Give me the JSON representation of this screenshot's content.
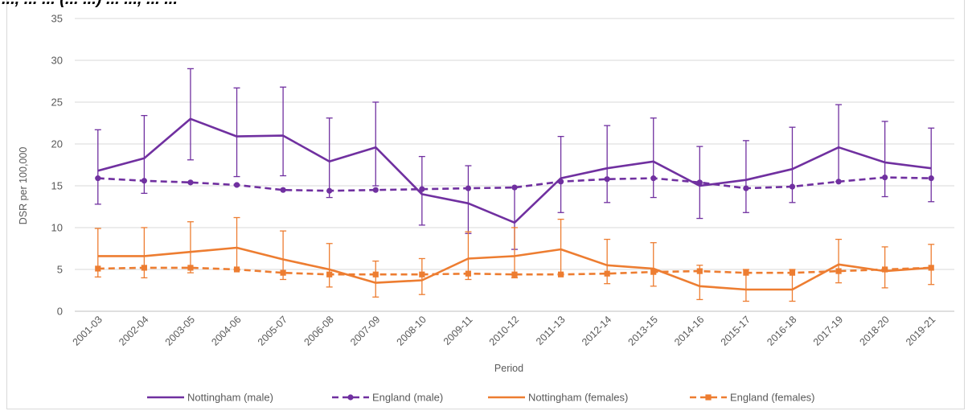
{
  "title_fragment": "..., ... ... (... ...) ... ..., ... ...",
  "chart_data": {
    "type": "line",
    "title": "",
    "xlabel": "Period",
    "ylabel": "DSR per 100,000",
    "ylim": [
      0,
      35
    ],
    "yticks": [
      0,
      5,
      10,
      15,
      20,
      25,
      30,
      35
    ],
    "grid": true,
    "legend_position": "bottom",
    "categories": [
      "2001-03",
      "2002-04",
      "2003-05",
      "2004-06",
      "2005-07",
      "2006-08",
      "2007-09",
      "2008-10",
      "2009-11",
      "2010-12",
      "2011-13",
      "2012-14",
      "2013-15",
      "2014-16",
      "2015-17",
      "2016-18",
      "2017-19",
      "2018-20",
      "2019-21"
    ],
    "series": [
      {
        "name": "Nottingham (male)",
        "color": "#7030a0",
        "style": "solid",
        "marker": "none",
        "values": [
          16.8,
          18.3,
          23.0,
          20.9,
          21.0,
          17.9,
          19.6,
          14.0,
          12.9,
          10.6,
          15.9,
          17.1,
          17.9,
          15.0,
          15.7,
          17.0,
          19.6,
          17.8,
          17.1
        ],
        "lower": [
          12.8,
          14.1,
          18.1,
          16.1,
          16.2,
          13.6,
          15.0,
          10.3,
          9.3,
          7.4,
          11.8,
          13.0,
          13.6,
          11.1,
          11.8,
          13.0,
          15.5,
          13.7,
          13.1
        ],
        "upper": [
          21.7,
          23.4,
          29.0,
          26.7,
          26.8,
          23.1,
          25.0,
          18.5,
          17.4,
          14.8,
          20.9,
          22.2,
          23.1,
          19.7,
          20.4,
          22.0,
          24.7,
          22.7,
          21.9
        ]
      },
      {
        "name": "England (male)",
        "color": "#7030a0",
        "style": "dashed",
        "marker": "circle",
        "values": [
          15.9,
          15.6,
          15.4,
          15.1,
          14.5,
          14.4,
          14.5,
          14.6,
          14.7,
          14.8,
          15.5,
          15.8,
          15.9,
          15.4,
          14.7,
          14.9,
          15.5,
          16.0,
          15.9
        ]
      },
      {
        "name": "Nottingham (females)",
        "color": "#ed7d31",
        "style": "solid",
        "marker": "none",
        "values": [
          6.6,
          6.6,
          7.1,
          7.6,
          6.2,
          5.0,
          3.4,
          3.7,
          6.3,
          6.6,
          7.4,
          5.5,
          5.1,
          3.0,
          2.6,
          2.6,
          5.6,
          4.8,
          5.2
        ],
        "lower": [
          4.1,
          4.0,
          4.6,
          5.0,
          3.8,
          2.9,
          1.7,
          2.0,
          3.8,
          4.0,
          4.4,
          3.3,
          3.0,
          1.4,
          1.2,
          1.2,
          3.4,
          2.8,
          3.2
        ],
        "upper": [
          9.9,
          10.0,
          10.7,
          11.2,
          9.6,
          8.1,
          6.0,
          6.3,
          9.5,
          10.0,
          11.0,
          8.6,
          8.2,
          5.5,
          5.0,
          5.0,
          8.6,
          7.7,
          8.0
        ]
      },
      {
        "name": "England (females)",
        "color": "#ed7d31",
        "style": "dashed",
        "marker": "square",
        "values": [
          5.1,
          5.2,
          5.2,
          5.0,
          4.6,
          4.4,
          4.4,
          4.4,
          4.5,
          4.4,
          4.4,
          4.5,
          4.7,
          4.8,
          4.6,
          4.6,
          4.8,
          5.0,
          5.2
        ]
      }
    ]
  }
}
